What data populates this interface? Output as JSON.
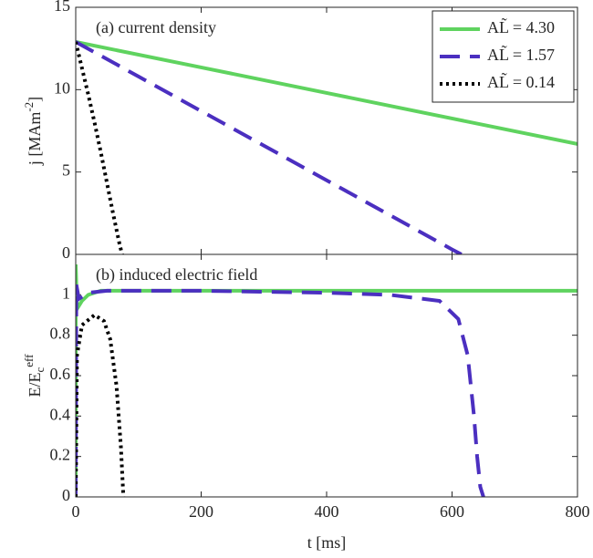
{
  "chart_data": [
    {
      "type": "line",
      "annotation": "(a) current density",
      "ylabel": "j [MAm^{-2}]",
      "xlim": [
        0,
        800
      ],
      "xticks": [
        0,
        200,
        400,
        600,
        800
      ],
      "ylim": [
        0,
        15
      ],
      "yticks": [
        0,
        5,
        10,
        15
      ],
      "legend": "upper right",
      "series": [
        {
          "name": "AL̃ = 4.30",
          "color": "#5fd35f",
          "linestyle": "solid",
          "x": [
            0,
            200,
            400,
            600,
            800
          ],
          "values": [
            12.9,
            11.35,
            9.8,
            8.25,
            6.7
          ]
        },
        {
          "name": "AL̃ = 1.57",
          "color": "#4b2fc0",
          "linestyle": "dashed",
          "x": [
            0,
            100,
            200,
            300,
            400,
            500,
            600,
            615
          ],
          "values": [
            12.9,
            10.8,
            8.7,
            6.6,
            4.5,
            2.4,
            0.3,
            0
          ]
        },
        {
          "name": "AL̃ = 0.14",
          "color": "#000000",
          "linestyle": "dotted",
          "x": [
            0,
            10,
            20,
            30,
            40,
            50,
            60,
            70,
            74
          ],
          "values": [
            12.9,
            11.3,
            9.7,
            8.0,
            6.2,
            4.3,
            2.4,
            0.6,
            0
          ]
        }
      ]
    },
    {
      "type": "line",
      "annotation": "(b) induced electric field",
      "ylabel": "E/E_{c}^{eff}",
      "xlabel": "t [ms]",
      "xlim": [
        0,
        800
      ],
      "xticks": [
        0,
        200,
        400,
        600,
        800
      ],
      "ylim": [
        0,
        1.2
      ],
      "yticks": [
        0,
        0.2,
        0.4,
        0.6,
        0.8,
        1
      ],
      "series": [
        {
          "color": "#5fd35f",
          "linestyle": "solid",
          "x": [
            0,
            0,
            2,
            10,
            20,
            40,
            200,
            800
          ],
          "values": [
            0,
            1.15,
            0.93,
            0.97,
            1.0,
            1.02,
            1.02,
            1.02
          ]
        },
        {
          "color": "#4b2fc0",
          "linestyle": "dashed",
          "x": [
            0,
            1,
            5,
            20,
            50,
            200,
            400,
            500,
            580,
            610,
            625,
            635,
            640,
            645,
            650
          ],
          "values": [
            0,
            1.05,
            0.98,
            1.01,
            1.02,
            1.02,
            1.01,
            1.0,
            0.97,
            0.88,
            0.7,
            0.4,
            0.2,
            0.05,
            0
          ]
        },
        {
          "color": "#000000",
          "linestyle": "dotted",
          "x": [
            0,
            2,
            10,
            30,
            45,
            55,
            65,
            72,
            76
          ],
          "values": [
            0,
            0.7,
            0.85,
            0.9,
            0.87,
            0.78,
            0.55,
            0.25,
            0
          ]
        }
      ]
    }
  ]
}
